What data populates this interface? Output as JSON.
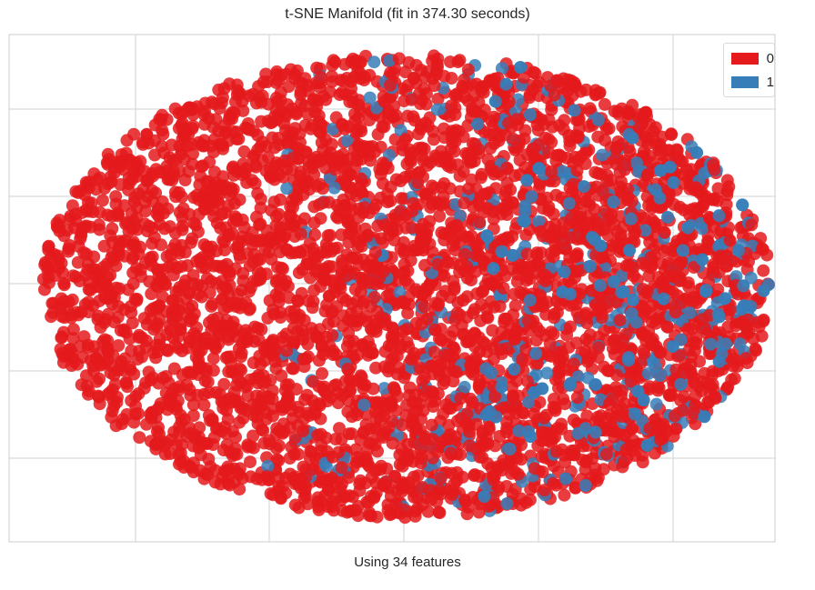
{
  "chart_data": {
    "type": "scatter",
    "title": "t-SNE Manifold (fit in 374.30 seconds)",
    "xlabel": "Using 34 features",
    "ylabel": "",
    "xticks_labeled": false,
    "yticks_labeled": false,
    "grid": true,
    "legend_placement": "top-right",
    "series": [
      {
        "name": "0",
        "color": "#e41a1c"
      },
      {
        "name": "1",
        "color": "#377eb8"
      }
    ],
    "note_points": "Dense point cloud; individual coordinates are unlabeled. Shape approximated as an elliptical cloud with class 1 concentrated toward the right/lower-right."
  }
}
